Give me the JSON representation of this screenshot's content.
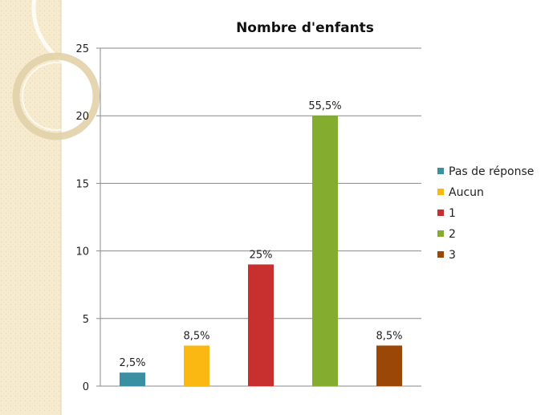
{
  "chart_data": {
    "type": "bar",
    "title": "Nombre d'enfants",
    "xlabel": "",
    "ylabel": "",
    "ylim": [
      0,
      25
    ],
    "yticks": [
      0,
      5,
      10,
      15,
      20,
      25
    ],
    "grid": true,
    "legend_position": "right",
    "series": [
      {
        "name": "Pas de réponse",
        "value": 1,
        "label": "2,5%",
        "color": "#3a8fa3"
      },
      {
        "name": "Aucun",
        "value": 3,
        "label": "8,5%",
        "color": "#fbb813"
      },
      {
        "name": "1",
        "value": 9,
        "label": "25%",
        "color": "#c8302f"
      },
      {
        "name": "2",
        "value": 20,
        "label": "55,5%",
        "color": "#84ad2f"
      },
      {
        "name": "3",
        "value": 3,
        "label": "8,5%",
        "color": "#9a4708"
      }
    ]
  }
}
